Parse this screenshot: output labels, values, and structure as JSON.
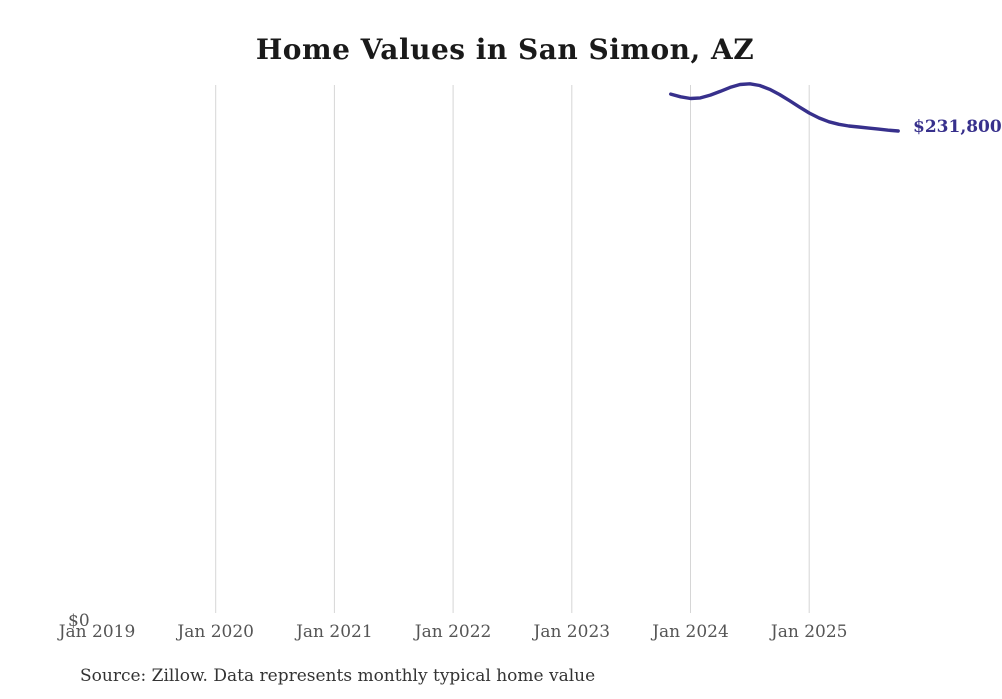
{
  "title": "Home Values in San Simon, AZ",
  "source_note": "Source: Zillow. Data represents monthly typical home value",
  "y_axis_zero_label": "$0",
  "end_value_label": "$231,800",
  "colors": {
    "line": "#37308c",
    "end_label_text": "#37308c",
    "gridline": "#d6d6d6",
    "axis_text": "#555555",
    "title_text": "#1a1a1a",
    "source_text": "#333333",
    "background": "#ffffff"
  },
  "chart_data": {
    "type": "line",
    "title": "Home Values in San Simon, AZ",
    "series_name": "Monthly typical home value",
    "xlabel": "",
    "ylabel": "",
    "ylim": [
      0,
      255000
    ],
    "grid": "vertical-only",
    "legend": "none",
    "end_value": 231800,
    "end_value_label": "$231,800",
    "y_min_label": "$0",
    "x_ticks": [
      {
        "label": "Jan 2019",
        "date": "2019-01",
        "gridline": false
      },
      {
        "label": "Jan 2020",
        "date": "2020-01",
        "gridline": true
      },
      {
        "label": "Jan 2021",
        "date": "2021-01",
        "gridline": true
      },
      {
        "label": "Jan 2022",
        "date": "2022-01",
        "gridline": true
      },
      {
        "label": "Jan 2023",
        "date": "2023-01",
        "gridline": true
      },
      {
        "label": "Jan 2024",
        "date": "2024-01",
        "gridline": true
      },
      {
        "label": "Jan 2025",
        "date": "2025-01",
        "gridline": true
      }
    ],
    "points": [
      {
        "date": "2023-11",
        "value": 249400
      },
      {
        "date": "2023-12",
        "value": 248100
      },
      {
        "date": "2024-01",
        "value": 247300
      },
      {
        "date": "2024-02",
        "value": 247600
      },
      {
        "date": "2024-03",
        "value": 248900
      },
      {
        "date": "2024-04",
        "value": 250700
      },
      {
        "date": "2024-05",
        "value": 252600
      },
      {
        "date": "2024-06",
        "value": 254000
      },
      {
        "date": "2024-07",
        "value": 254300
      },
      {
        "date": "2024-08",
        "value": 253500
      },
      {
        "date": "2024-09",
        "value": 251700
      },
      {
        "date": "2024-10",
        "value": 249200
      },
      {
        "date": "2024-11",
        "value": 246300
      },
      {
        "date": "2024-12",
        "value": 243300
      },
      {
        "date": "2025-01",
        "value": 240400
      },
      {
        "date": "2025-02",
        "value": 238000
      },
      {
        "date": "2025-03",
        "value": 236200
      },
      {
        "date": "2025-04",
        "value": 235000
      },
      {
        "date": "2025-05",
        "value": 234200
      },
      {
        "date": "2025-06",
        "value": 233700
      },
      {
        "date": "2025-07",
        "value": 233200
      },
      {
        "date": "2025-08",
        "value": 232700
      },
      {
        "date": "2025-09",
        "value": 232200
      },
      {
        "date": "2025-10",
        "value": 231800
      }
    ]
  }
}
